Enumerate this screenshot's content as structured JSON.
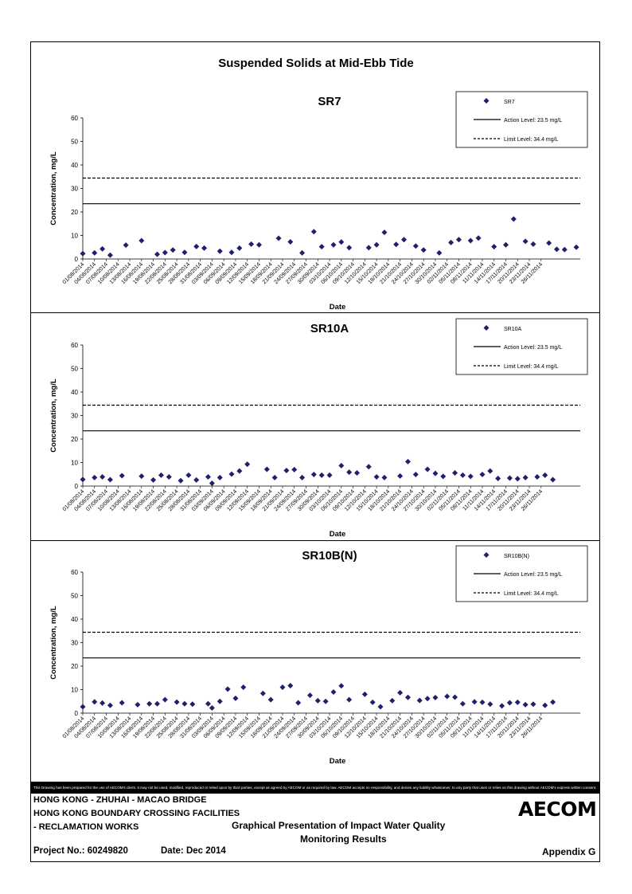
{
  "page": {
    "title": "Suspended Solids at Mid-Ebb Tide",
    "disclaimer": "This Drawing has been prepared for the use of AECOM's client. It may not be used, modified, reproduced or relied upon by third parties, except as agreed by AECOM or as required by law. AECOM accepts no responsibility, and denies any liability whatsoever, to any party that uses or relies on this drawing without AECOM's express written consent.",
    "project_line1": "HONG KONG - ZHUHAI - MACAO BRIDGE",
    "project_line2": "HONG KONG BOUNDARY CROSSING FACILITIES",
    "project_line3": "- RECLAMATION WORKS",
    "description_line1": "Graphical Presentation of Impact Water Quality",
    "description_line2": "Monitoring Results",
    "project_no": "Project No.: 60249820",
    "date": "Date: Dec 2014",
    "appendix": "Appendix G",
    "logo": "AECOM"
  },
  "chart_data": [
    {
      "type": "scatter",
      "title": "SR7",
      "xlabel": "Date",
      "ylabel": "Concentration, mg/L",
      "ylim": [
        0,
        60
      ],
      "yticks": [
        0,
        10,
        20,
        30,
        40,
        50,
        60
      ],
      "xlim": [
        "01/08/2014",
        "28/11/2014"
      ],
      "xtick_labels": [
        "01/08/2014",
        "04/08/2014",
        "07/08/2014",
        "10/08/2014",
        "13/08/2014",
        "16/08/2014",
        "19/08/2014",
        "22/08/2014",
        "25/08/2014",
        "28/08/2014",
        "31/08/2014",
        "03/09/2014",
        "06/09/2014",
        "09/09/2014",
        "12/09/2014",
        "15/09/2014",
        "18/09/2014",
        "21/09/2014",
        "24/09/2014",
        "27/09/2014",
        "30/09/2014",
        "03/10/2014",
        "06/10/2014",
        "09/10/2014",
        "12/10/2014",
        "15/10/2014",
        "18/10/2014",
        "21/10/2014",
        "24/10/2014",
        "27/10/2014",
        "30/10/2014",
        "02/11/2014",
        "05/11/2014",
        "08/11/2014",
        "11/11/2014",
        "14/11/2014",
        "17/11/2014",
        "20/11/2014",
        "23/11/2014",
        "26/11/2014"
      ],
      "legend_position": "top-right",
      "series": [
        {
          "name": "SR7",
          "kind": "scatter",
          "color": "#1f1f6e",
          "x": [
            "01/08/2014",
            "04/08/2014",
            "06/08/2014",
            "08/08/2014",
            "12/08/2014",
            "16/08/2014",
            "20/08/2014",
            "22/08/2014",
            "24/08/2014",
            "27/08/2014",
            "30/08/2014",
            "01/09/2014",
            "05/09/2014",
            "08/09/2014",
            "10/09/2014",
            "13/09/2014",
            "15/09/2014",
            "20/09/2014",
            "23/09/2014",
            "26/09/2014",
            "29/09/2014",
            "01/10/2014",
            "04/10/2014",
            "06/10/2014",
            "08/10/2014",
            "13/10/2014",
            "15/10/2014",
            "17/10/2014",
            "20/10/2014",
            "22/10/2014",
            "25/10/2014",
            "27/10/2014",
            "31/10/2014",
            "03/11/2014",
            "05/11/2014",
            "08/11/2014",
            "10/11/2014",
            "14/11/2014",
            "17/11/2014",
            "19/11/2014",
            "22/11/2014",
            "24/11/2014",
            "28/11/2014",
            "30/11/2014",
            "02/12/2014",
            "05/12/2014"
          ],
          "y": [
            2.3,
            2.6,
            4.3,
            1.6,
            5.9,
            7.8,
            2.0,
            2.7,
            3.8,
            2.8,
            5.3,
            4.6,
            3.3,
            2.8,
            4.6,
            6.3,
            6.0,
            8.8,
            7.3,
            2.6,
            11.6,
            5.2,
            6.0,
            7.2,
            4.8,
            4.8,
            6.0,
            11.3,
            6.2,
            8.2,
            5.5,
            3.8,
            2.6,
            7.0,
            8.2,
            7.8,
            8.9,
            5.2,
            6.0,
            17.0,
            7.5,
            6.3,
            6.8,
            4.1,
            4.0,
            5.0
          ]
        }
      ],
      "lines": [
        {
          "name": "Action Level: 23.5 mg/L",
          "value": 23.5,
          "style": "solid"
        },
        {
          "name": "Limit Level: 34.4 mg/L",
          "value": 34.4,
          "style": "dashed"
        }
      ]
    },
    {
      "type": "scatter",
      "title": "SR10A",
      "xlabel": "Date",
      "ylabel": "Concentration, mg/L",
      "ylim": [
        0,
        60
      ],
      "yticks": [
        0,
        10,
        20,
        30,
        40,
        50,
        60
      ],
      "xlim": [
        "01/08/2014",
        "28/11/2014"
      ],
      "xtick_labels": [
        "01/08/2014",
        "04/08/2014",
        "07/08/2014",
        "10/08/2014",
        "13/08/2014",
        "16/08/2014",
        "19/08/2014",
        "22/08/2014",
        "25/08/2014",
        "28/08/2014",
        "31/08/2014",
        "03/09/2014",
        "06/09/2014",
        "09/09/2014",
        "12/09/2014",
        "15/09/2014",
        "18/09/2014",
        "21/09/2014",
        "24/09/2014",
        "27/09/2014",
        "30/09/2014",
        "03/10/2014",
        "06/10/2014",
        "09/10/2014",
        "12/10/2014",
        "15/10/2014",
        "18/10/2014",
        "21/10/2014",
        "24/10/2014",
        "27/10/2014",
        "30/10/2014",
        "02/11/2014",
        "05/11/2014",
        "08/11/2014",
        "11/11/2014",
        "14/11/2014",
        "17/11/2014",
        "20/11/2014",
        "23/11/2014",
        "26/11/2014"
      ],
      "legend_position": "top-right",
      "series": [
        {
          "name": "SR10A",
          "kind": "scatter",
          "color": "#1f1f6e",
          "x": [
            "01/08/2014",
            "04/08/2014",
            "06/08/2014",
            "08/08/2014",
            "11/08/2014",
            "16/08/2014",
            "19/08/2014",
            "21/08/2014",
            "23/08/2014",
            "26/08/2014",
            "28/08/2014",
            "30/08/2014",
            "02/09/2014",
            "03/09/2014",
            "05/09/2014",
            "08/09/2014",
            "10/09/2014",
            "12/09/2014",
            "17/09/2014",
            "19/09/2014",
            "22/09/2014",
            "24/09/2014",
            "26/09/2014",
            "29/09/2014",
            "01/10/2014",
            "03/10/2014",
            "06/10/2014",
            "08/10/2014",
            "10/10/2014",
            "13/10/2014",
            "15/10/2014",
            "17/10/2014",
            "21/10/2014",
            "23/10/2014",
            "25/10/2014",
            "28/10/2014",
            "30/10/2014",
            "01/11/2014",
            "04/11/2014",
            "06/11/2014",
            "08/11/2014",
            "11/11/2014",
            "13/11/2014",
            "15/11/2014",
            "18/11/2014",
            "20/11/2014",
            "22/11/2014",
            "25/11/2014",
            "27/11/2014",
            "29/11/2014"
          ],
          "y": [
            2.8,
            3.6,
            3.9,
            2.7,
            4.4,
            4.2,
            2.6,
            4.6,
            3.9,
            2.3,
            4.6,
            2.6,
            3.9,
            1.2,
            3.6,
            5.1,
            6.4,
            9.3,
            7.1,
            3.6,
            6.6,
            7.0,
            3.6,
            4.9,
            4.6,
            4.6,
            8.7,
            5.9,
            5.6,
            8.2,
            3.9,
            3.6,
            4.3,
            10.4,
            4.9,
            7.1,
            5.4,
            4.1,
            5.6,
            4.6,
            4.1,
            4.9,
            6.4,
            3.2,
            3.4,
            3.1,
            3.6,
            3.9,
            4.6,
            2.7
          ]
        }
      ],
      "lines": [
        {
          "name": "Action Level: 23.5 mg/L",
          "value": 23.5,
          "style": "solid"
        },
        {
          "name": "Limit Level: 34.4 mg/L",
          "value": 34.4,
          "style": "dashed"
        }
      ]
    },
    {
      "type": "scatter",
      "title": "SR10B(N)",
      "xlabel": "Date",
      "ylabel": "Concentration, mg/L",
      "ylim": [
        0,
        60
      ],
      "yticks": [
        0,
        10,
        20,
        30,
        40,
        50,
        60
      ],
      "xlim": [
        "01/08/2014",
        "28/11/2014"
      ],
      "xtick_labels": [
        "01/08/2014",
        "04/08/2014",
        "07/08/2014",
        "10/08/2014",
        "13/08/2014",
        "16/08/2014",
        "19/08/2014",
        "22/08/2014",
        "25/08/2014",
        "28/08/2014",
        "31/08/2014",
        "03/09/2014",
        "06/09/2014",
        "09/09/2014",
        "12/09/2014",
        "15/09/2014",
        "18/09/2014",
        "21/09/2014",
        "24/09/2014",
        "27/09/2014",
        "30/09/2014",
        "03/10/2014",
        "06/10/2014",
        "09/10/2014",
        "12/10/2014",
        "15/10/2014",
        "18/10/2014",
        "21/10/2014",
        "24/10/2014",
        "27/10/2014",
        "30/10/2014",
        "02/11/2014",
        "05/11/2014",
        "08/11/2014",
        "11/11/2014",
        "14/11/2014",
        "17/11/2014",
        "20/11/2014",
        "23/11/2014",
        "26/11/2014"
      ],
      "legend_position": "top-right",
      "series": [
        {
          "name": "SR10B(N)",
          "kind": "scatter",
          "color": "#1f1f6e",
          "x": [
            "01/08/2014",
            "04/08/2014",
            "06/08/2014",
            "08/08/2014",
            "11/08/2014",
            "15/08/2014",
            "18/08/2014",
            "20/08/2014",
            "22/08/2014",
            "25/08/2014",
            "27/08/2014",
            "29/08/2014",
            "02/09/2014",
            "03/09/2014",
            "05/09/2014",
            "07/09/2014",
            "09/09/2014",
            "11/09/2014",
            "16/09/2014",
            "18/09/2014",
            "21/09/2014",
            "23/09/2014",
            "25/09/2014",
            "28/09/2014",
            "30/09/2014",
            "02/10/2014",
            "04/10/2014",
            "06/10/2014",
            "08/10/2014",
            "12/10/2014",
            "14/10/2014",
            "16/10/2014",
            "19/10/2014",
            "21/10/2014",
            "23/10/2014",
            "26/10/2014",
            "28/10/2014",
            "30/10/2014",
            "02/11/2014",
            "04/11/2014",
            "06/11/2014",
            "09/11/2014",
            "11/11/2014",
            "13/11/2014",
            "16/11/2014",
            "18/11/2014",
            "20/11/2014",
            "22/11/2014",
            "24/11/2014",
            "27/11/2014",
            "29/11/2014"
          ],
          "y": [
            2.7,
            4.8,
            4.3,
            3.3,
            4.4,
            3.6,
            4.0,
            4.0,
            5.7,
            4.7,
            4.0,
            3.8,
            4.0,
            2.2,
            5.0,
            10.2,
            6.3,
            11.0,
            8.4,
            5.7,
            11.0,
            11.7,
            4.4,
            7.6,
            5.3,
            5.0,
            9.0,
            11.6,
            5.7,
            8.0,
            4.6,
            2.7,
            5.3,
            8.7,
            6.7,
            5.4,
            6.2,
            6.6,
            7.1,
            6.8,
            4.0,
            4.8,
            4.6,
            3.8,
            3.1,
            4.4,
            4.6,
            3.6,
            3.8,
            3.3,
            4.7
          ]
        }
      ],
      "lines": [
        {
          "name": "Action Level: 23.5 mg/L",
          "value": 23.5,
          "style": "solid"
        },
        {
          "name": "Limit Level: 34.4 mg/L",
          "value": 34.4,
          "style": "dashed"
        }
      ]
    }
  ]
}
